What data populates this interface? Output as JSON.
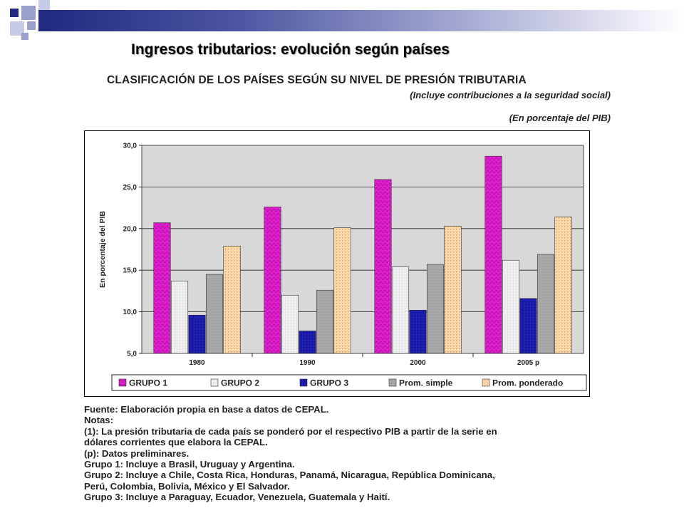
{
  "slide": {
    "title": "Ingresos tributarios: evolución según países",
    "accent_colors": [
      "#1f2a80",
      "#9aa0cc",
      "#c8cbe6"
    ]
  },
  "chart_header": {
    "heading": "CLASIFICACIÓN DE LOS PAÍSES SEGÚN SU NIVEL DE PRESIÓN TRIBUTARIA",
    "subtitle1": "(Incluye contribuciones a la seguridad social)",
    "subtitle2": "(En porcentaje del PIB)"
  },
  "chart_data": {
    "type": "bar",
    "ylabel": "En porcentaje del PIB",
    "ylim": [
      5,
      30
    ],
    "yticks": [
      "5,0",
      "10,0",
      "15,0",
      "20,0",
      "25,0",
      "30,0"
    ],
    "grid": true,
    "legend_position": "bottom",
    "categories": [
      "1980",
      "1990",
      "2000",
      "2005 p"
    ],
    "series": [
      {
        "name": "GRUPO 1",
        "values": [
          20.7,
          22.6,
          25.9,
          28.7
        ],
        "color": "#e020d0"
      },
      {
        "name": "GRUPO 2",
        "values": [
          13.7,
          12.0,
          15.4,
          16.2
        ],
        "color": "#eeeeee"
      },
      {
        "name": "GRUPO 3",
        "values": [
          9.6,
          7.7,
          10.2,
          11.6
        ],
        "color": "#1a1aa8"
      },
      {
        "name": "Prom. simple",
        "values": [
          14.5,
          12.6,
          15.7,
          16.9
        ],
        "color": "#a8a8a8"
      },
      {
        "name": "Prom. ponderado",
        "values": [
          17.9,
          20.1,
          20.3,
          21.4
        ],
        "color": "#fcd8a8"
      }
    ]
  },
  "notes": {
    "fuente": "Fuente: Elaboración propia en base a datos de CEPAL.",
    "notas_label": "Notas:",
    "nota1_line1": "(1): La presión tributaria de cada país se ponderó por el respectivo PIB a partir de la serie en",
    "nota1_line2": "dólares corrientes que elabora la CEPAL.",
    "nota_p": "(p): Datos preliminares.",
    "grupo1": "Grupo 1: Incluye a Brasil, Uruguay y Argentina.",
    "grupo2_line1": "Grupo 2: Incluye a Chile, Costa Rica, Honduras, Panamá, Nicaragua, República Dominicana,",
    "grupo2_line2": "Perú, Colombia, Bolivia, México y El Salvador.",
    "grupo3": "Grupo 3: Incluye a Paraguay, Ecuador, Venezuela, Guatemala y Haití."
  }
}
